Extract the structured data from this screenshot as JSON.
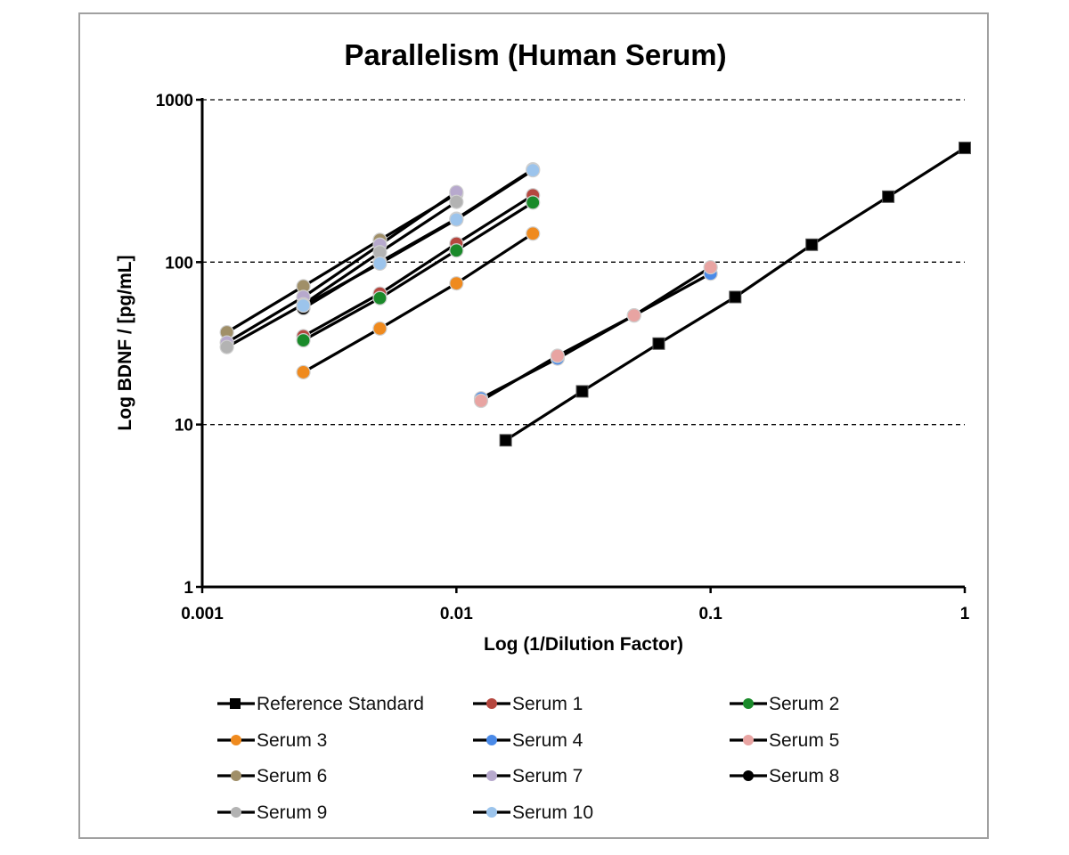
{
  "chart_data": {
    "type": "line",
    "title": "Parallelism (Human Serum)",
    "xlabel": "Log (1/Dilution Factor)",
    "ylabel": "Log BDNF / [pg/mL]",
    "xscale": "log",
    "yscale": "log",
    "xlim": [
      0.001,
      1
    ],
    "ylim": [
      1,
      1000
    ],
    "x_ticks": [
      "0.001",
      "0.01",
      "0.1",
      "1"
    ],
    "y_ticks": [
      "1",
      "10",
      "100",
      "1000"
    ],
    "grid": "horizontal dashed",
    "legend_position": "bottom",
    "series": [
      {
        "name": "Reference Standard",
        "color": "#000000",
        "marker": "square",
        "x": [
          0.015625,
          0.03125,
          0.0625,
          0.125,
          0.25,
          0.5,
          1
        ],
        "y": [
          8,
          16,
          31.5,
          61,
          128,
          253,
          505
        ]
      },
      {
        "name": "Serum 1",
        "color": "#b5473f",
        "marker": "circle",
        "x": [
          0.0025,
          0.005,
          0.01,
          0.02
        ],
        "y": [
          35,
          64,
          130,
          258
        ]
      },
      {
        "name": "Serum 2",
        "color": "#1a8a2a",
        "marker": "circle",
        "x": [
          0.0025,
          0.005,
          0.01,
          0.02
        ],
        "y": [
          33,
          60,
          118,
          233
        ]
      },
      {
        "name": "Serum 3",
        "color": "#ef8a1e",
        "marker": "circle",
        "x": [
          0.0025,
          0.005,
          0.01,
          0.02
        ],
        "y": [
          21,
          39,
          74,
          150
        ]
      },
      {
        "name": "Serum 4",
        "color": "#4a8ae8",
        "marker": "circle",
        "x": [
          0.0125,
          0.025,
          0.05,
          0.1
        ],
        "y": [
          14.5,
          25.5,
          47,
          85
        ]
      },
      {
        "name": "Serum 5",
        "color": "#e8a4a2",
        "marker": "circle",
        "x": [
          0.0125,
          0.025,
          0.05,
          0.1
        ],
        "y": [
          14,
          26.5,
          47,
          93
        ]
      },
      {
        "name": "Serum 6",
        "color": "#a08f68",
        "marker": "circle",
        "x": [
          0.00125,
          0.0025,
          0.005,
          0.01
        ],
        "y": [
          37,
          71,
          137,
          263
        ]
      },
      {
        "name": "Serum 7",
        "color": "#b7a9cd",
        "marker": "circle",
        "x": [
          0.00125,
          0.0025,
          0.005,
          0.01
        ],
        "y": [
          32,
          61,
          128,
          270
        ]
      },
      {
        "name": "Serum 8",
        "color": "#000000",
        "marker": "circle",
        "x": [
          0.0025,
          0.005,
          0.01,
          0.02
        ],
        "y": [
          52,
          100,
          185,
          373
        ]
      },
      {
        "name": "Serum 9",
        "color": "#b3b3b3",
        "marker": "circle",
        "x": [
          0.00125,
          0.0025,
          0.005,
          0.01
        ],
        "y": [
          30,
          55,
          115,
          235
        ]
      },
      {
        "name": "Serum 10",
        "color": "#9cc4ec",
        "marker": "circle",
        "x": [
          0.0025,
          0.005,
          0.01,
          0.02
        ],
        "y": [
          54,
          98,
          183,
          368
        ]
      }
    ]
  }
}
